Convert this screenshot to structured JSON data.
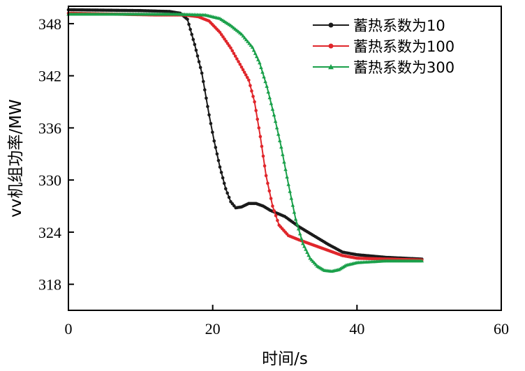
{
  "chart_data": {
    "type": "line",
    "xlabel": "时间/s",
    "ylabel": "vv机组功率/MW",
    "xlim": [
      0,
      60
    ],
    "ylim": [
      315,
      350
    ],
    "xticks": [
      0,
      20,
      40,
      60
    ],
    "yticks": [
      318,
      324,
      330,
      336,
      342,
      348
    ],
    "grid": false,
    "legend_position": "top-right",
    "series": [
      {
        "name": "蓄热系数为10",
        "color": "#1a1a1a",
        "marker": "circle",
        "points": [
          [
            0,
            349.6
          ],
          [
            10,
            349.5
          ],
          [
            14,
            349.4
          ],
          [
            15.5,
            349.2
          ],
          [
            16.5,
            348.5
          ],
          [
            17.5,
            345.6
          ],
          [
            18.5,
            342.3
          ],
          [
            19.5,
            337.5
          ],
          [
            20.2,
            334.5
          ],
          [
            21,
            331.5
          ],
          [
            21.8,
            329.0
          ],
          [
            22.5,
            327.5
          ],
          [
            23.2,
            326.8
          ],
          [
            24,
            326.9
          ],
          [
            25,
            327.3
          ],
          [
            26,
            327.3
          ],
          [
            27,
            327.0
          ],
          [
            28,
            326.5
          ],
          [
            30,
            325.8
          ],
          [
            32,
            324.6
          ],
          [
            34,
            323.6
          ],
          [
            36,
            322.6
          ],
          [
            38,
            321.7
          ],
          [
            40,
            321.4
          ],
          [
            44,
            321.1
          ],
          [
            49,
            320.9
          ]
        ]
      },
      {
        "name": "蓄热系数为100",
        "color": "#e0262b",
        "marker": "circle",
        "points": [
          [
            0,
            349.2
          ],
          [
            12,
            349.0
          ],
          [
            16,
            349.0
          ],
          [
            18,
            348.8
          ],
          [
            19.5,
            348.3
          ],
          [
            21,
            347.0
          ],
          [
            22.5,
            345.2
          ],
          [
            24,
            343.0
          ],
          [
            25,
            341.5
          ],
          [
            25.8,
            339.0
          ],
          [
            26.6,
            335.0
          ],
          [
            27.4,
            330.5
          ],
          [
            28.3,
            327.0
          ],
          [
            29.2,
            324.8
          ],
          [
            30.5,
            323.6
          ],
          [
            32,
            323.1
          ],
          [
            34,
            322.5
          ],
          [
            36,
            321.9
          ],
          [
            38,
            321.3
          ],
          [
            40,
            321.0
          ],
          [
            44,
            320.9
          ],
          [
            49,
            320.8
          ]
        ]
      },
      {
        "name": "蓄热系数为300",
        "color": "#1aa04a",
        "marker": "triangle",
        "points": [
          [
            0,
            349.1
          ],
          [
            15,
            349.1
          ],
          [
            19,
            349.0
          ],
          [
            21,
            348.6
          ],
          [
            22.5,
            347.8
          ],
          [
            24,
            346.8
          ],
          [
            25.5,
            345.3
          ],
          [
            26.5,
            343.5
          ],
          [
            27.5,
            340.8
          ],
          [
            28.5,
            337.5
          ],
          [
            29.5,
            333.8
          ],
          [
            30.5,
            329.5
          ],
          [
            31.5,
            325.5
          ],
          [
            32.5,
            322.7
          ],
          [
            33.5,
            321.0
          ],
          [
            34.5,
            320.1
          ],
          [
            35.5,
            319.6
          ],
          [
            36.5,
            319.5
          ],
          [
            37.5,
            319.7
          ],
          [
            38.5,
            320.2
          ],
          [
            40,
            320.5
          ],
          [
            44,
            320.7
          ],
          [
            49,
            320.7
          ]
        ]
      }
    ]
  }
}
